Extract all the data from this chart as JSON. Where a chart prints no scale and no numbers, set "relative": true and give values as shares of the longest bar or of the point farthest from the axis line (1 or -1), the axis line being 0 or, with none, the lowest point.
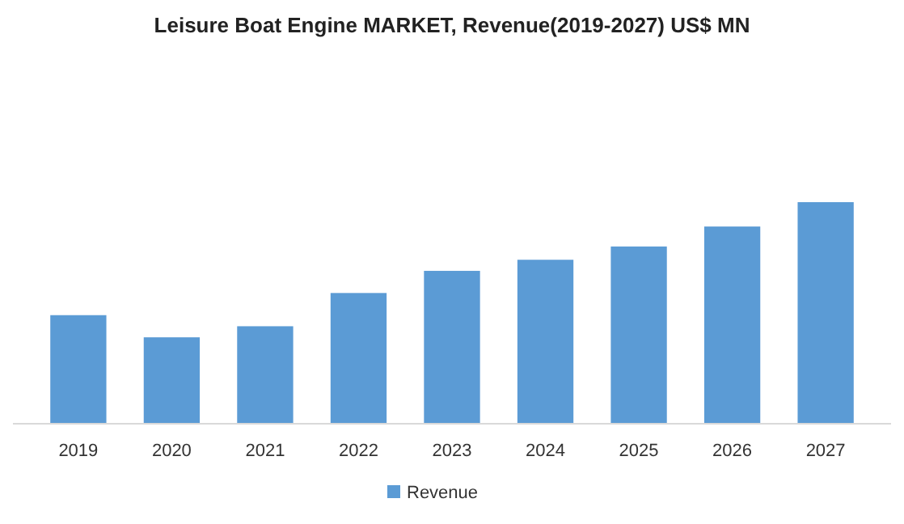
{
  "chart_data": {
    "type": "bar",
    "title": "Leisure Boat Engine MARKET,  Revenue(2019-2027) US$ MN",
    "categories": [
      "2019",
      "2020",
      "2021",
      "2022",
      "2023",
      "2024",
      "2025",
      "2026",
      "2027"
    ],
    "series": [
      {
        "name": "Revenue",
        "color": "#5b9bd5",
        "values": [
          0.49,
          0.39,
          0.44,
          0.59,
          0.69,
          0.74,
          0.8,
          0.89,
          1
        ]
      }
    ],
    "relative": true,
    "legend": "bottom",
    "grid": false
  }
}
